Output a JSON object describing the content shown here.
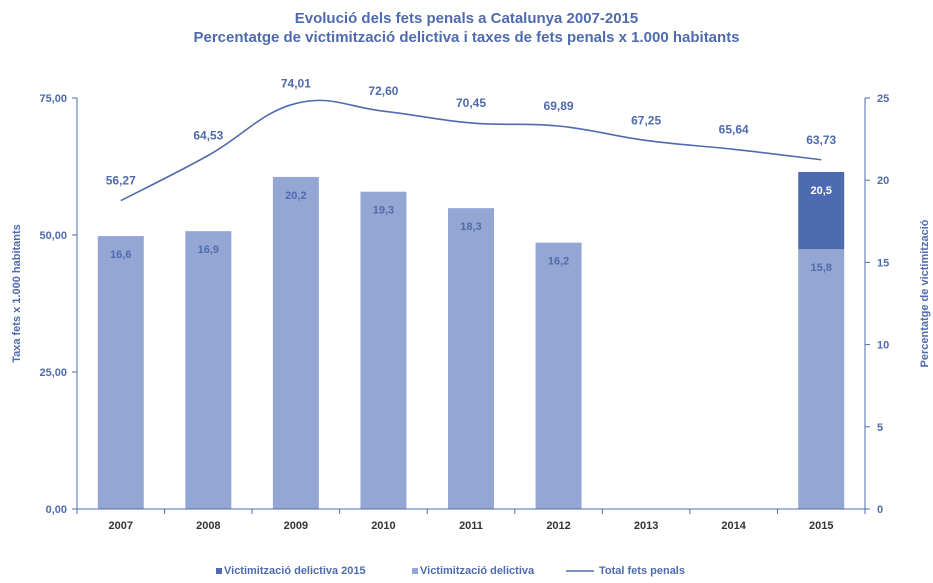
{
  "chart_data": {
    "type": "bar",
    "title": "Evolució dels fets penals  a Catalunya 2007-2015",
    "subtitle": "Percentatge de victimització delictiva i taxes de fets penals x 1.000 habitants",
    "categories": [
      "2007",
      "2008",
      "2009",
      "2010",
      "2011",
      "2012",
      "2013",
      "2014",
      "2015"
    ],
    "y_left": {
      "label": "Taxa fets  x 1.000 habitants",
      "ylim": [
        0,
        75
      ],
      "ticks": [
        "0,00",
        "25,00",
        "50,00",
        "75,00"
      ]
    },
    "y_right": {
      "label": "Percentatge de victimització",
      "ylim": [
        0,
        25
      ],
      "ticks": [
        "0",
        "5",
        "10",
        "15",
        "20",
        "25"
      ]
    },
    "series": [
      {
        "name": "Victimització delictiva 2015",
        "type": "bar",
        "axis": "right",
        "color": "#4E6AB0",
        "values": [
          null,
          null,
          null,
          null,
          null,
          null,
          null,
          null,
          20.5
        ],
        "labels": [
          "",
          "",
          "",
          "",
          "",
          "",
          "",
          "",
          "20,5"
        ]
      },
      {
        "name": "Victimització delictiva",
        "type": "bar",
        "axis": "right",
        "color": "#94A6D3",
        "values": [
          16.6,
          16.9,
          20.2,
          19.3,
          18.3,
          16.2,
          null,
          null,
          15.8
        ],
        "labels": [
          "16,6",
          "16,9",
          "20,2",
          "19,3",
          "18,3",
          "16,2",
          "",
          "",
          "15,8"
        ]
      },
      {
        "name": "Total fets penals",
        "type": "line",
        "axis": "left",
        "color": "#4F6BAD",
        "values": [
          56.27,
          64.53,
          74.01,
          72.6,
          70.45,
          69.89,
          67.25,
          65.64,
          63.73
        ],
        "labels": [
          "56,27",
          "64,53",
          "74,01",
          "72,60",
          "70,45",
          "69,89",
          "67,25",
          "65,64",
          "63,73"
        ]
      }
    ],
    "legend": "bottom",
    "grid": false
  }
}
